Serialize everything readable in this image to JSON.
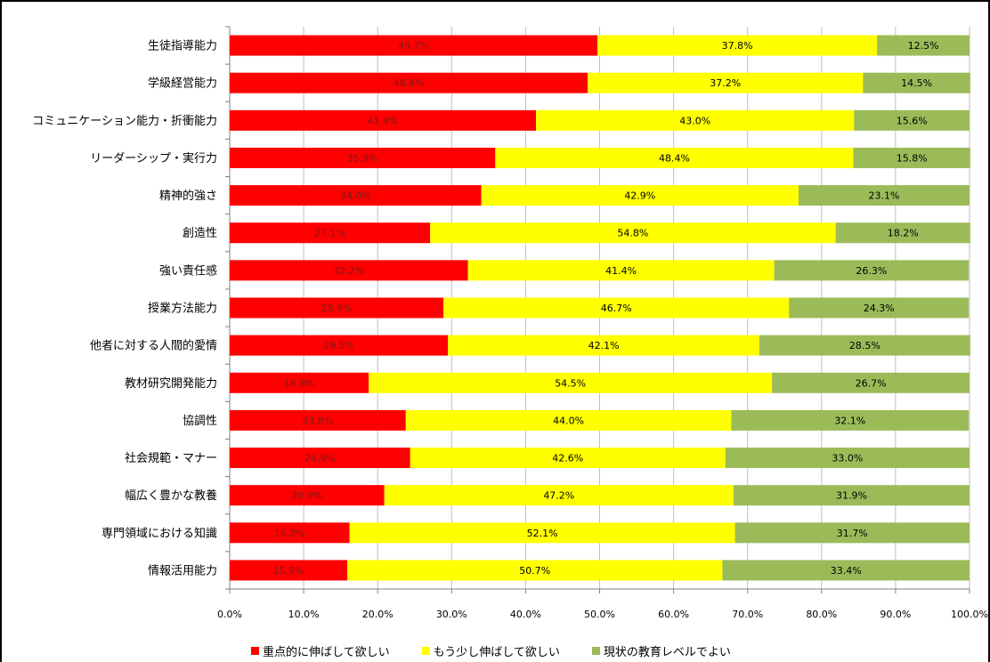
{
  "chart_data": {
    "type": "bar",
    "orientation": "horizontal",
    "stacked": true,
    "title": "",
    "xlabel": "",
    "ylabel": "",
    "xlim": [
      0,
      100
    ],
    "x_ticks": [
      "0.0%",
      "10.0%",
      "20.0%",
      "30.0%",
      "40.0%",
      "50.0%",
      "60.0%",
      "70.0%",
      "80.0%",
      "90.0%",
      "100.0%"
    ],
    "grid": true,
    "legend_position": "bottom",
    "categories": [
      "生徒指導能力",
      "学級経営能力",
      "コミュニケーション能力・折衝能力",
      "リーダーシップ・実行力",
      "精神的強さ",
      "創造性",
      "強い責任感",
      "授業方法能力",
      "他者に対する人間的愛情",
      "教材研究開発能力",
      "協調性",
      "社会規範・マナー",
      "幅広く豊かな教養",
      "専門領域における知識",
      "情報活用能力"
    ],
    "series": [
      {
        "name": "重点的に伸ばして欲しい",
        "color": "#ff0000",
        "values": [
          49.7,
          48.4,
          41.4,
          35.9,
          34.0,
          27.1,
          32.2,
          28.9,
          29.5,
          18.8,
          23.8,
          24.4,
          20.9,
          16.2,
          15.9
        ],
        "labels": [
          "49.7%",
          "48.4%",
          "41.4%",
          "35.9%",
          "34.0%",
          "27.1%",
          "32.2%",
          "28.9%",
          "29.5%",
          "18.8%",
          "23.8%",
          "24.4%",
          "20.9%",
          "16.2%",
          "15.9%"
        ]
      },
      {
        "name": "もう少し伸ばして欲しい",
        "color": "#ffff00",
        "values": [
          37.8,
          37.2,
          43.0,
          48.4,
          42.9,
          54.8,
          41.4,
          46.7,
          42.1,
          54.5,
          44.0,
          42.6,
          47.2,
          52.1,
          50.7
        ],
        "labels": [
          "37.8%",
          "37.2%",
          "43.0%",
          "48.4%",
          "42.9%",
          "54.8%",
          "41.4%",
          "46.7%",
          "42.1%",
          "54.5%",
          "44.0%",
          "42.6%",
          "47.2%",
          "52.1%",
          "50.7%"
        ]
      },
      {
        "name": "現状の教育レベルでよい",
        "color": "#9bbb59",
        "values": [
          12.5,
          14.5,
          15.6,
          15.8,
          23.1,
          18.2,
          26.3,
          24.3,
          28.5,
          26.7,
          32.1,
          33.0,
          31.9,
          31.7,
          33.4
        ],
        "labels": [
          "12.5%",
          "14.5%",
          "15.6%",
          "15.8%",
          "23.1%",
          "18.2%",
          "26.3%",
          "24.3%",
          "28.5%",
          "26.7%",
          "32.1%",
          "33.0%",
          "31.9%",
          "31.7%",
          "33.4%"
        ]
      }
    ]
  }
}
